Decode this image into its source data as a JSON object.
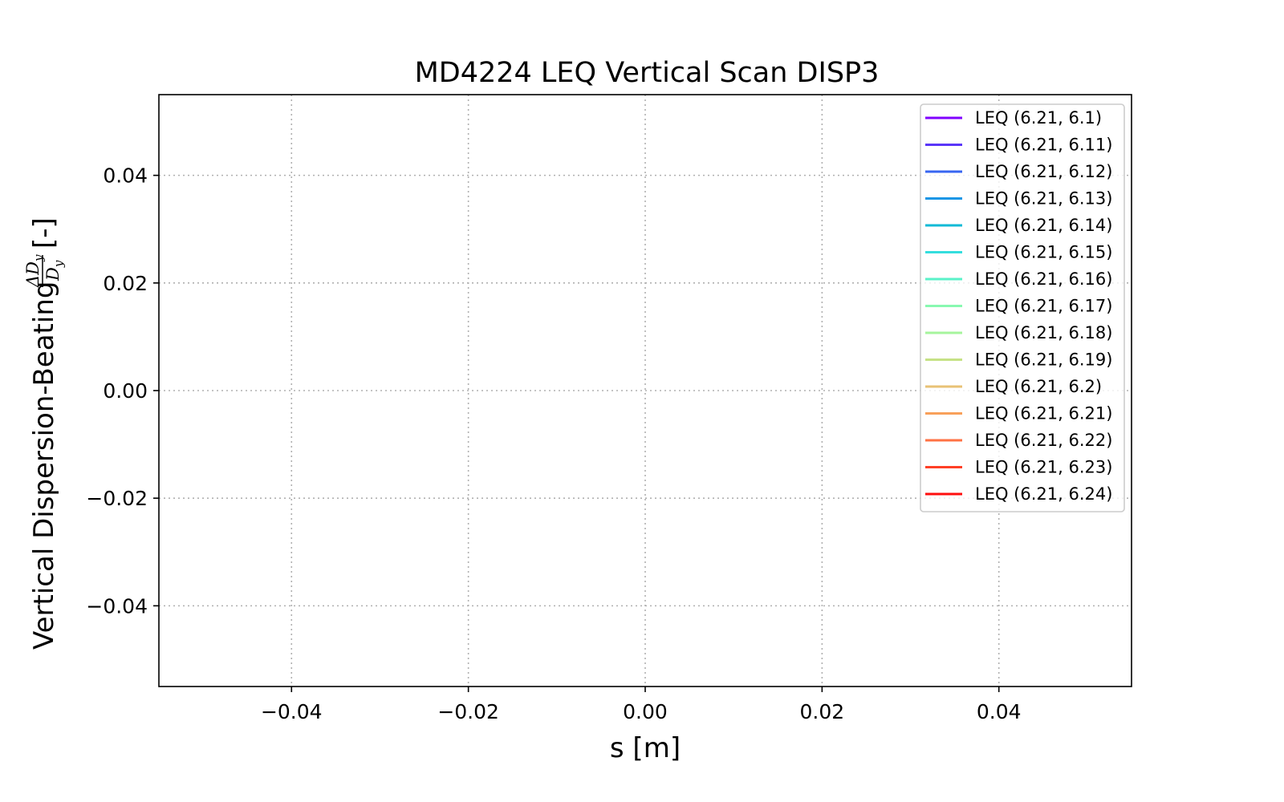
{
  "chart_data": {
    "type": "line",
    "title": "MD4224 LEQ Vertical Scan DISP3",
    "xlabel": "s [m]",
    "ylabel": {
      "text": "Vertical Dispersion-Beating",
      "math_num": "ΔD",
      "math_den": "D",
      "math_sub": "y",
      "unit": "[-]"
    },
    "xlim": [
      -0.055,
      0.055
    ],
    "ylim": [
      -0.055,
      0.055
    ],
    "xticks": [
      -0.04,
      -0.02,
      0.0,
      0.02,
      0.04
    ],
    "xtick_labels": [
      "−0.04",
      "−0.02",
      "0.00",
      "0.02",
      "0.04"
    ],
    "yticks": [
      0.04,
      0.02,
      0.0,
      -0.02,
      -0.04
    ],
    "ytick_labels": [
      "0.04",
      "0.02",
      "0.00",
      "−0.02",
      "−0.04"
    ],
    "grid": true,
    "legend_position": "top-right",
    "series": [
      {
        "name": "LEQ (6.21, 6.1)",
        "color": "#8000ff",
        "x": [],
        "y": []
      },
      {
        "name": "LEQ (6.21, 6.11)",
        "color": "#5a36f9",
        "x": [],
        "y": []
      },
      {
        "name": "LEQ (6.21, 6.12)",
        "color": "#3866f1",
        "x": [],
        "y": []
      },
      {
        "name": "LEQ (6.21, 6.13)",
        "color": "#1896e5",
        "x": [],
        "y": []
      },
      {
        "name": "LEQ (6.21, 6.14)",
        "color": "#12bad6",
        "x": [],
        "y": []
      },
      {
        "name": "LEQ (6.21, 6.15)",
        "color": "#34dede",
        "x": [],
        "y": []
      },
      {
        "name": "LEQ (6.21, 6.16)",
        "color": "#5af2c8",
        "x": [],
        "y": []
      },
      {
        "name": "LEQ (6.21, 6.17)",
        "color": "#88f8b0",
        "x": [],
        "y": []
      },
      {
        "name": "LEQ (6.21, 6.18)",
        "color": "#a6f49c",
        "x": [],
        "y": []
      },
      {
        "name": "LEQ (6.21, 6.19)",
        "color": "#c6e286",
        "x": [],
        "y": []
      },
      {
        "name": "LEQ (6.21, 6.2)",
        "color": "#e8c276",
        "x": [],
        "y": []
      },
      {
        "name": "LEQ (6.21, 6.21)",
        "color": "#f8a05a",
        "x": [],
        "y": []
      },
      {
        "name": "LEQ (6.21, 6.22)",
        "color": "#ff7244",
        "x": [],
        "y": []
      },
      {
        "name": "LEQ (6.21, 6.23)",
        "color": "#ff3f26",
        "x": [],
        "y": []
      },
      {
        "name": "LEQ (6.21, 6.24)",
        "color": "#ff0e0e",
        "x": [],
        "y": []
      }
    ]
  }
}
